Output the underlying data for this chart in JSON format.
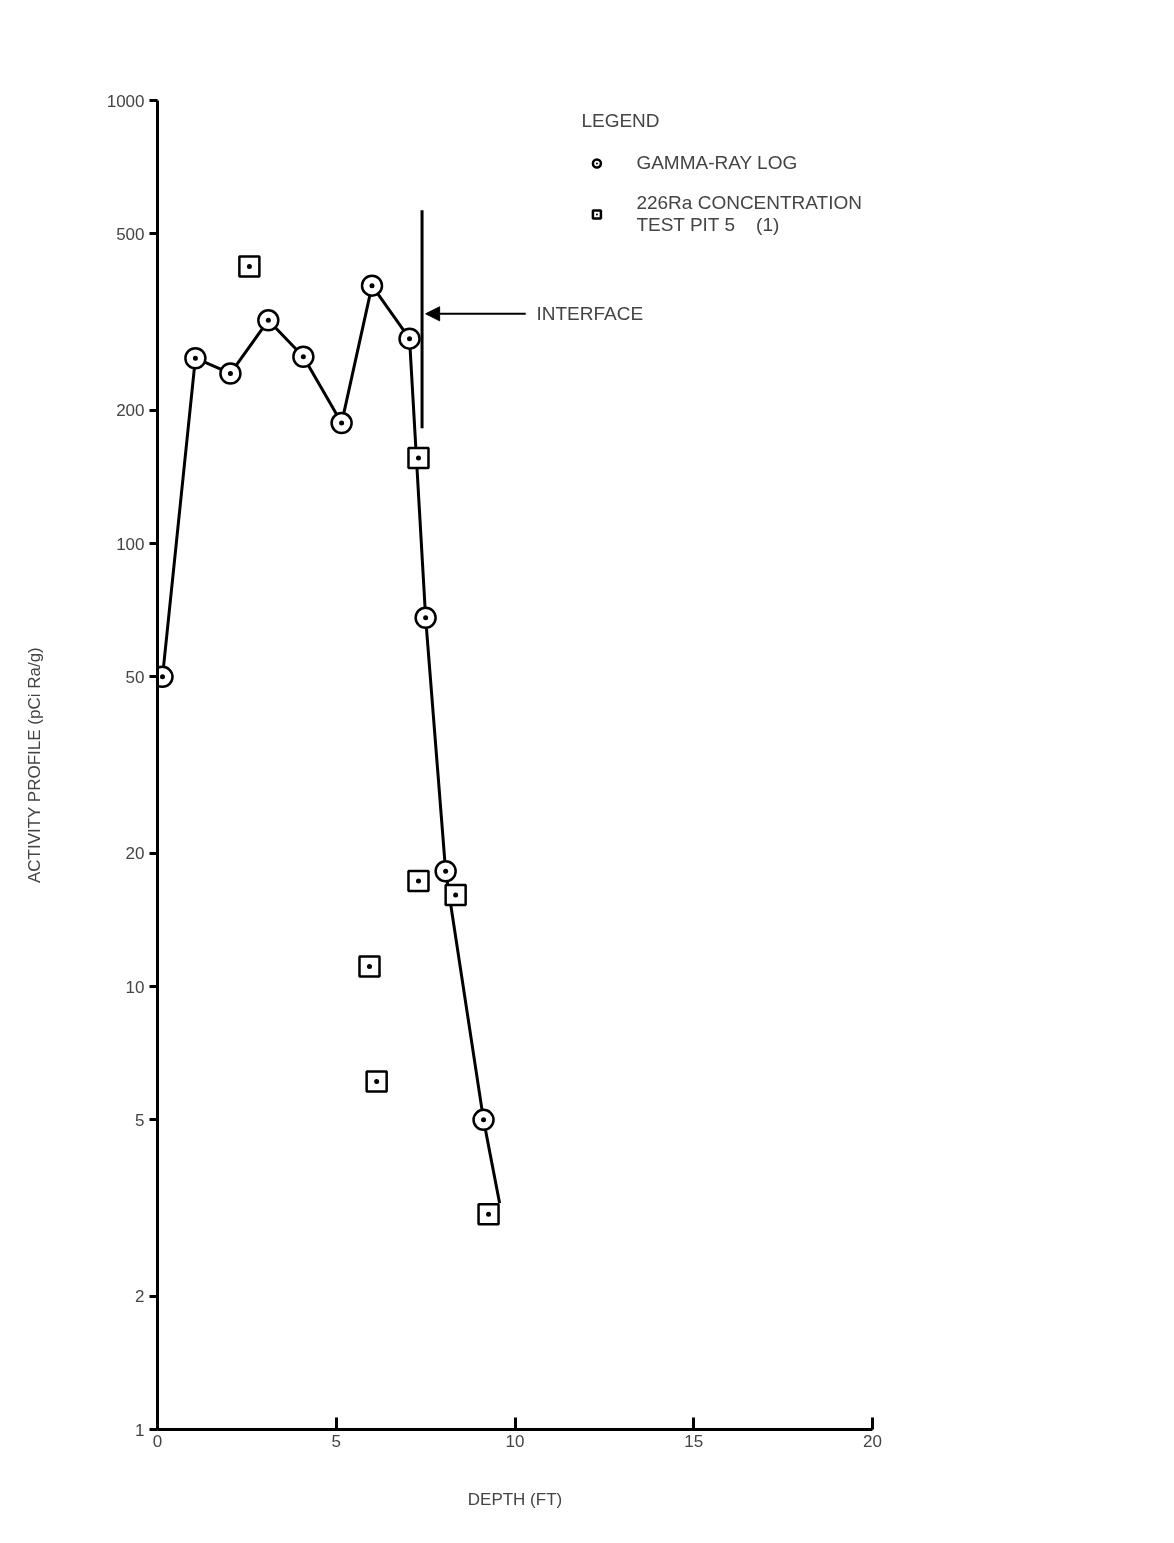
{
  "chart_data": {
    "type": "line",
    "xlabel": "DEPTH (FT)",
    "ylabel": "ACTIVITY PROFILE (pCi Ra/g)",
    "legend_title": "LEGEND",
    "legend": "top right",
    "log": "y",
    "grid": false,
    "xlim": [
      0,
      20
    ],
    "xticks": [
      0,
      5,
      10,
      15,
      20
    ],
    "ylim": [
      1,
      1000
    ],
    "yticks": [
      1,
      2,
      5,
      10,
      20,
      50,
      100,
      200,
      500,
      1000
    ],
    "series": [
      {
        "color": "#000000",
        "marker": "none",
        "line_style": "solid",
        "x": [
          0.14,
          1.06,
          2.04,
          3.1,
          4.08,
          5.15,
          6.0,
          7.05,
          7.5,
          8.06,
          9.12,
          9.57
        ],
        "values": [
          50,
          262,
          242,
          319,
          264,
          187,
          382,
          290,
          68,
          18.2,
          5.0,
          3.24
        ]
      },
      {
        "name": "GAMMA-RAY LOG",
        "type": "scatter",
        "color": "#000000",
        "marker": "circle",
        "x": [
          0.14,
          1.06,
          2.04,
          3.1,
          4.08,
          5.15,
          6.0,
          7.05,
          7.5,
          8.06,
          9.12
        ],
        "values": [
          50,
          262,
          242,
          319,
          264,
          187,
          382,
          290,
          68,
          18.2,
          5.0
        ]
      },
      {
        "name": "226Ra CONCENTRATION\nTEST PIT 5    (1)",
        "type": "scatter",
        "color": "#000000",
        "marker": "square",
        "x": [
          2.57,
          7.3,
          7.3,
          8.34,
          5.93,
          6.13,
          9.26
        ],
        "values": [
          422,
          156,
          17.3,
          16.1,
          11.1,
          6.1,
          3.06
        ]
      },
      {
        "type": "line",
        "color": "#000000",
        "marker": "none",
        "line_style": "solid",
        "x": [
          7.4,
          7.4
        ],
        "values": [
          565,
          182
        ]
      }
    ],
    "annotations": [
      {
        "text": "INTERFACE",
        "x": 7.4,
        "y": 330
      }
    ]
  }
}
